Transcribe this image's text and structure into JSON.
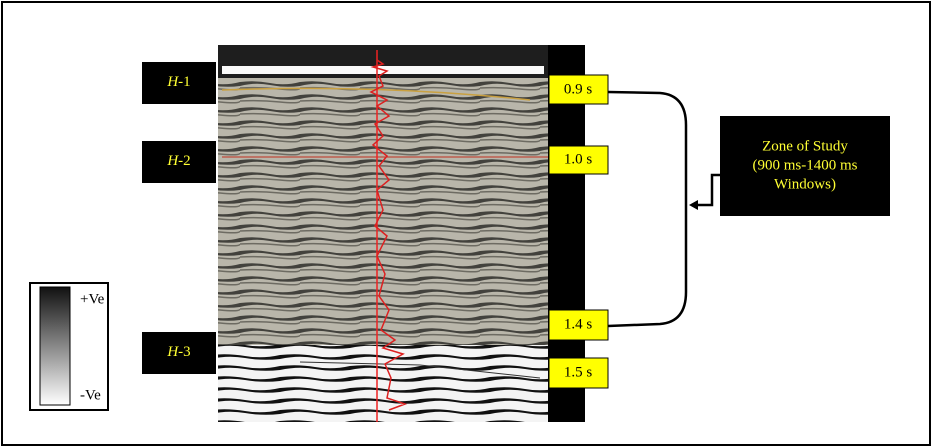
{
  "horizons": [
    {
      "letter": "H",
      "suffix": "-1"
    },
    {
      "letter": "H",
      "suffix": "-2"
    },
    {
      "letter": "H",
      "suffix": "-3"
    }
  ],
  "times": [
    "0.9 s",
    "1.0 s",
    "1.4 s",
    "1.5 s"
  ],
  "zone": {
    "lines": [
      "Zone of Study",
      "(900 ms-1400 ms",
      "Windows)"
    ]
  },
  "legend": {
    "top": "+Ve",
    "bottom": "-Ve"
  }
}
